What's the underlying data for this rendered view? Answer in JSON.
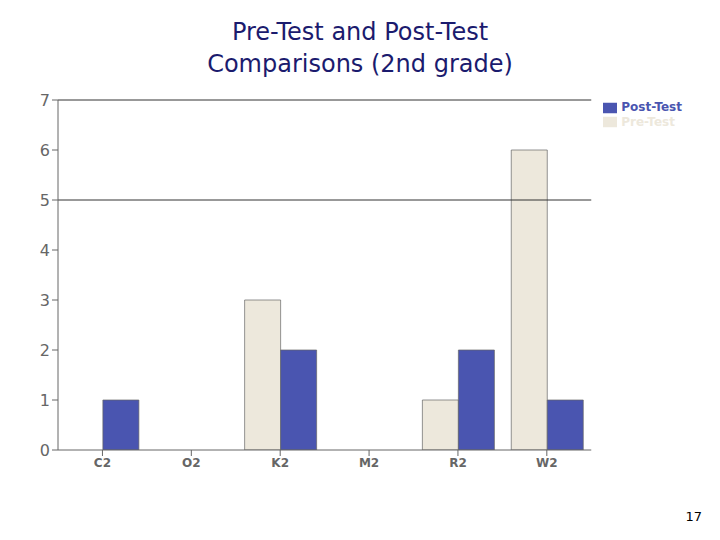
{
  "chart_data": {
    "type": "bar",
    "title": "Pre-Test and Post-Test",
    "subtitle": "Comparisons (2nd grade)",
    "categories": [
      "C2",
      "O2",
      "K2",
      "M2",
      "R2",
      "W2"
    ],
    "series": [
      {
        "name": "Pre-Test",
        "color": "#EDE8DC",
        "values": [
          0,
          0,
          3,
          0,
          1,
          6
        ]
      },
      {
        "name": "Post-Test",
        "color": "#4A55B0",
        "values": [
          1,
          0,
          2,
          0,
          2,
          1
        ]
      }
    ],
    "ylim": [
      0,
      7
    ],
    "yticks": [
      0,
      1,
      2,
      3,
      4,
      5,
      6,
      7
    ],
    "hlines": [
      5,
      7
    ],
    "grid": false,
    "legend": "upper right",
    "annotations": [
      "17"
    ]
  }
}
